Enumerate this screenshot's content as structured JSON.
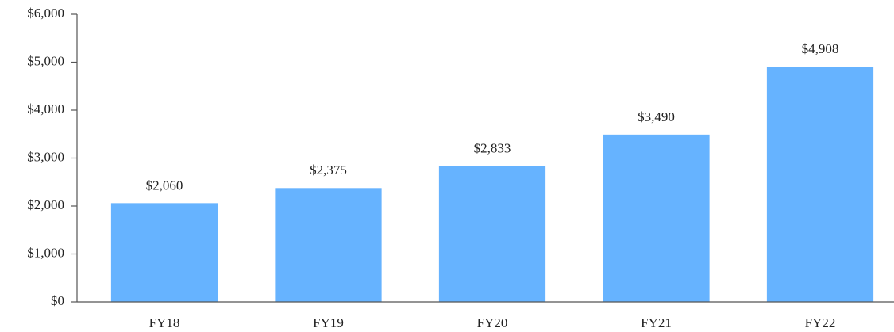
{
  "chart_data": {
    "type": "bar",
    "categories": [
      "FY18",
      "FY19",
      "FY20",
      "FY21",
      "FY22"
    ],
    "values": [
      2060,
      2375,
      2833,
      3490,
      4908
    ],
    "value_labels": [
      "$2,060",
      "$2,375",
      "$2,833",
      "$3,490",
      "$4,908"
    ],
    "color": "#66b3ff",
    "ylim": [
      0,
      6000
    ],
    "yticks": [
      {
        "value": 0,
        "label": "$0"
      },
      {
        "value": 1000,
        "label": "$1,000"
      },
      {
        "value": 2000,
        "label": "$2,000"
      },
      {
        "value": 3000,
        "label": "$3,000"
      },
      {
        "value": 4000,
        "label": "$4,000"
      },
      {
        "value": 5000,
        "label": "$5,000"
      },
      {
        "value": 6000,
        "label": "$6,000"
      }
    ],
    "grid": false
  }
}
